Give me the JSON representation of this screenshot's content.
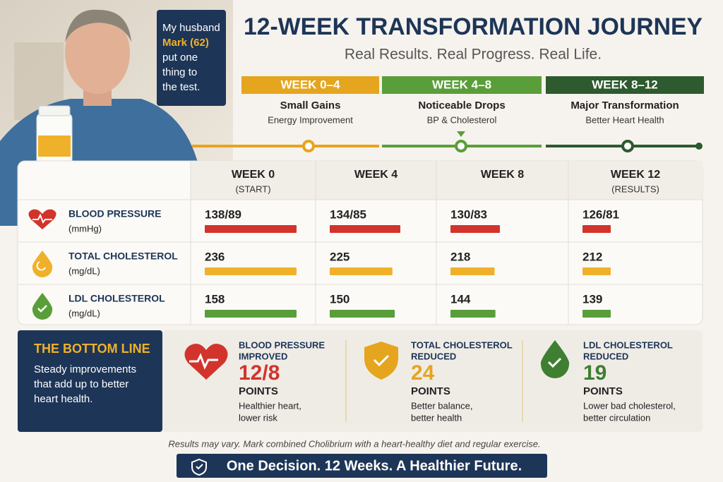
{
  "sidebar": {
    "quote": [
      "My husband",
      "Mark (62)",
      "put one",
      "thing to",
      "the test."
    ]
  },
  "header": {
    "title": "12-WEEK TRANSFORMATION JOURNEY",
    "subtitle": "Real Results. Real Progress. Real Life."
  },
  "phases": [
    {
      "week": "WEEK 0–4",
      "title": "Small Gains",
      "subtitle": "Energy Improvement",
      "color": "#e6a51e"
    },
    {
      "week": "WEEK 4–8",
      "title": "Noticeable Drops",
      "subtitle": "BP & Cholesterol",
      "color": "#5a9e3a"
    },
    {
      "week": "WEEK 8–12",
      "title": "Major Transformation",
      "subtitle": "Better Heart Health",
      "color": "#2d5a2e"
    }
  ],
  "table": {
    "columns": [
      {
        "week": "WEEK 0",
        "note": "(START)"
      },
      {
        "week": "WEEK 4"
      },
      {
        "week": "WEEK 8"
      },
      {
        "week": "WEEK 12",
        "note": "(RESULTS)"
      }
    ],
    "rows": [
      {
        "metric": "BLOOD PRESSURE",
        "unit": "(mmHg)",
        "color": "#d2342c",
        "cells": [
          {
            "value": 138,
            "label": "138/89"
          },
          {
            "value": 134,
            "label": "134/85"
          },
          {
            "value": 130,
            "label": "130/83"
          },
          {
            "value": 126,
            "label": "126/81"
          }
        ]
      },
      {
        "metric": "TOTAL CHOLESTEROL",
        "unit": "(mg/dL)",
        "color": "#f0b12a",
        "cells": [
          {
            "value": 236
          },
          {
            "value": 225
          },
          {
            "value": 218
          },
          {
            "value": 212
          }
        ]
      },
      {
        "metric": "LDL CHOLESTEROL",
        "unit": "(mg/dL)",
        "color": "#5a9e3a",
        "cells": [
          {
            "value": 158
          },
          {
            "value": 150
          },
          {
            "value": 144
          },
          {
            "value": 139
          }
        ]
      }
    ]
  },
  "bottom_line": {
    "title": "THE BOTTOM LINE",
    "text": [
      "Steady improvements",
      "that add up to better",
      "heart health."
    ],
    "items": [
      {
        "title": [
          "BLOOD PRESSURE",
          "IMPROVED"
        ],
        "value": "12/8",
        "unit": "POINTS",
        "note": [
          "Healthier heart,",
          "lower risk"
        ],
        "color": "#d2342c"
      },
      {
        "title": [
          "TOTAL CHOLESTEROL",
          "REDUCED"
        ],
        "value": 24,
        "unit": "POINTS",
        "note": [
          "Better balance,",
          "better health"
        ],
        "color": "#e6a51e"
      },
      {
        "title": [
          "LDL CHOLESTEROL",
          "REDUCED"
        ],
        "value": 19,
        "unit": "POINTS",
        "note": [
          "Lower bad cholesterol,",
          "better circulation"
        ],
        "color": "#3f7f32"
      }
    ]
  },
  "footnote": "Results may vary. Mark combined Cholibrium with a heart-healthy diet and regular exercise.",
  "banner": "One Decision. 12 Weeks. A Healthier Future."
}
